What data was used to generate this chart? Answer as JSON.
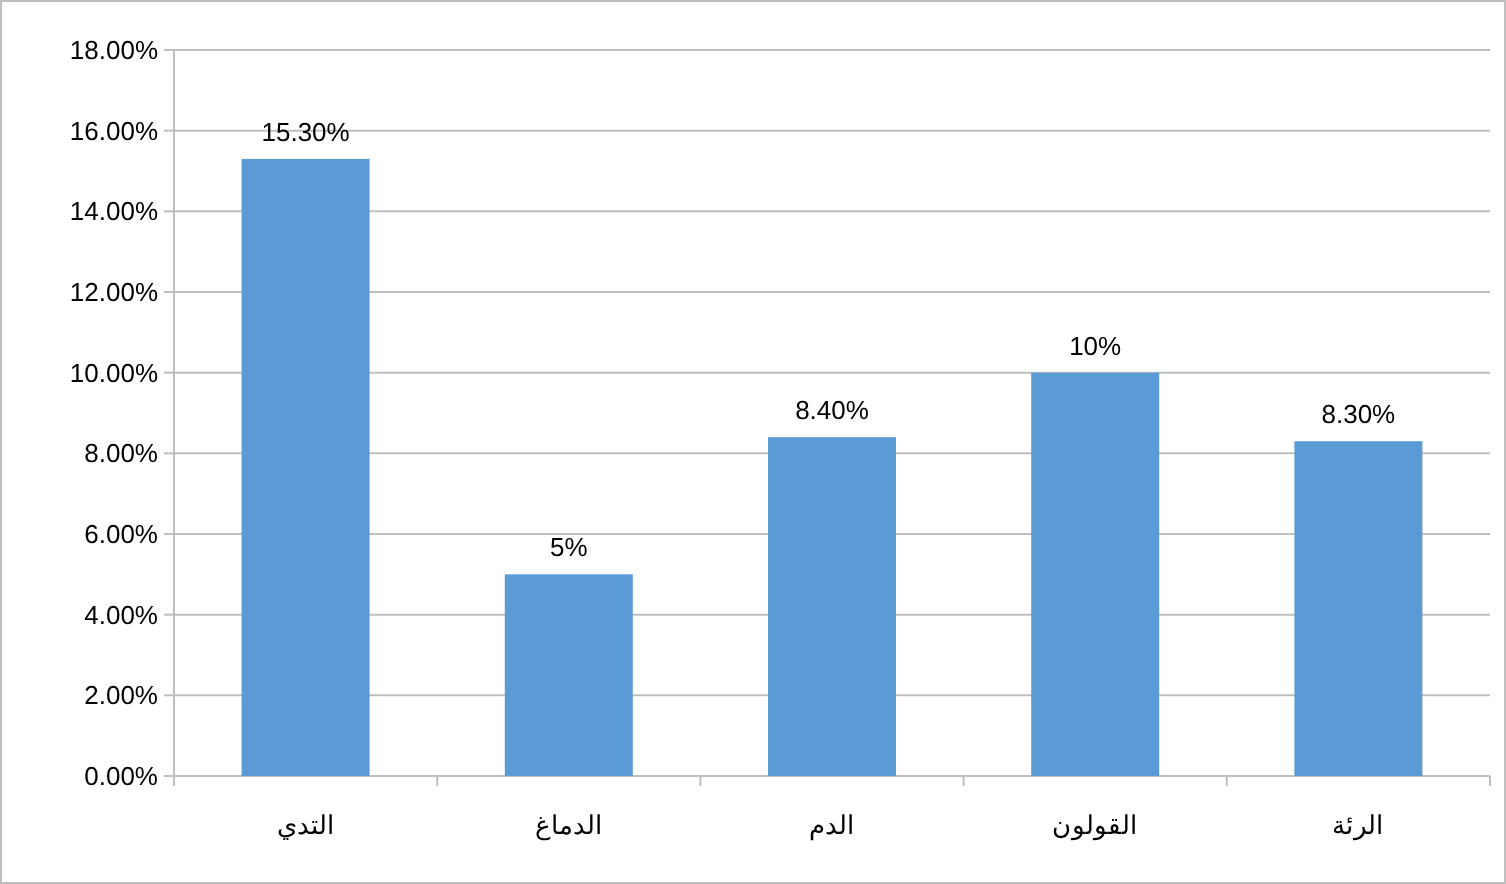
{
  "chart_data": {
    "type": "bar",
    "categories": [
      "التدي",
      "الدماغ",
      "الدم",
      "القولون",
      "الرئة"
    ],
    "values": [
      15.3,
      5,
      8.4,
      10,
      8.3
    ],
    "value_labels": [
      "15.30%",
      "5%",
      "8.40%",
      "10%",
      "8.30%"
    ],
    "color": "#5b9bd5",
    "ylim": [
      0,
      18
    ],
    "yticks": [
      {
        "value": 0,
        "label": "0.00%"
      },
      {
        "value": 2,
        "label": "2.00%"
      },
      {
        "value": 4,
        "label": "4.00%"
      },
      {
        "value": 6,
        "label": "6.00%"
      },
      {
        "value": 8,
        "label": "8.00%"
      },
      {
        "value": 10,
        "label": "10.00%"
      },
      {
        "value": 12,
        "label": "12.00%"
      },
      {
        "value": 14,
        "label": "14.00%"
      },
      {
        "value": 16,
        "label": "16.00%"
      },
      {
        "value": 18,
        "label": "18.00%"
      }
    ],
    "grid": "y"
  }
}
